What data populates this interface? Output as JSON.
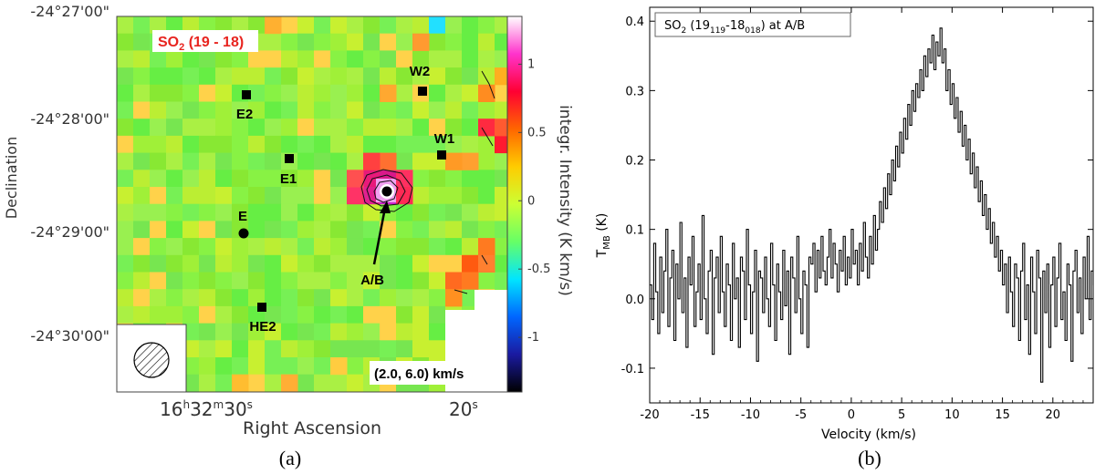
{
  "panels": {
    "a": {
      "caption": "(a)"
    },
    "b": {
      "caption": "(b)"
    }
  },
  "chart_data": [
    {
      "type": "heatmap",
      "id": "map",
      "map_label": "SO2 (19 - 18)",
      "map_label_parts": {
        "species": "SO",
        "sub": "2",
        "rest": " (19 - 18)"
      },
      "velocity_range_label": "(2.0, 6.0) km/s",
      "xlabel": "Right Ascension",
      "ylabel": "Declination",
      "colorbar_label": "integr. Intensity (K km/s)",
      "colorbar_ticks": [
        "-1",
        "-0.5",
        "0",
        "0.5",
        "1"
      ],
      "colorbar_ticks_values": [
        -1,
        -0.5,
        0,
        0.5,
        1
      ],
      "colorbar_range": [
        -1.4,
        1.35
      ],
      "colorbar_colors": [
        "#000000",
        "#1a1aa0",
        "#0066ff",
        "#00e5ff",
        "#66ff66",
        "#ccff33",
        "#ffcc00",
        "#ff6600",
        "#ff0033",
        "#ff33cc",
        "#ffffff"
      ],
      "dec_ticks": [
        "-24°27'00\"",
        "-24°28'00\"",
        "-24°29'00\"",
        "-24°30'00\""
      ],
      "ra_ticks": [
        "16h32m30s",
        "20s"
      ],
      "ra_tick_parts": {
        "h": "16",
        "m": "32",
        "s": "30",
        "s2": "20"
      },
      "sources": [
        {
          "name": "W2",
          "marker": "square"
        },
        {
          "name": "E2",
          "marker": "square"
        },
        {
          "name": "W1",
          "marker": "square"
        },
        {
          "name": "E1",
          "marker": "square"
        },
        {
          "name": "E",
          "marker": "circle"
        },
        {
          "name": "A/B",
          "marker": "circle"
        },
        {
          "name": "HE2",
          "marker": "square"
        }
      ]
    },
    {
      "type": "line",
      "id": "spectrum",
      "title": "SO2 (19119-18018) at A/B",
      "title_parts": {
        "a": "SO",
        "a_sub": "2",
        "b": " (19",
        "b_sub": "119",
        "c": "-18",
        "c_sub": "018",
        "d": ") at A/B"
      },
      "xlabel": "Velocity (km/s)",
      "ylabel": "TMB (K)",
      "ylabel_parts": {
        "main": "T",
        "sub": "MB",
        "unit": " (K)"
      },
      "xlim": [
        -20,
        24
      ],
      "ylim": [
        -0.15,
        0.42
      ],
      "xticks": [
        -20,
        -15,
        -10,
        -5,
        0,
        5,
        10,
        15,
        20
      ],
      "yticks": [
        -0.1,
        0.0,
        0.1,
        0.2,
        0.3,
        0.4
      ],
      "ytick_labels": [
        "-0.1",
        "0.0",
        "0.1",
        "0.2",
        "0.3",
        "0.4"
      ],
      "step": true,
      "velocity_start": -20,
      "velocity_step": 0.2,
      "values": [
        0.02,
        -0.03,
        0.08,
        0.01,
        -0.05,
        0.06,
        -0.02,
        0.04,
        0.1,
        -0.04,
        0.03,
        0.07,
        -0.06,
        0.05,
        0.0,
        0.11,
        -0.02,
        0.03,
        -0.07,
        0.06,
        0.02,
        0.09,
        -0.04,
        0.01,
        0.05,
        -0.03,
        0.12,
        0.0,
        -0.05,
        0.04,
        0.07,
        -0.08,
        0.03,
        0.06,
        -0.02,
        0.09,
        0.01,
        -0.04,
        0.05,
        0.02,
        -0.06,
        0.08,
        0.0,
        0.03,
        -0.07,
        0.06,
        0.04,
        -0.03,
        0.1,
        0.02,
        -0.05,
        0.01,
        0.07,
        -0.09,
        0.04,
        0.03,
        -0.02,
        0.06,
        0.0,
        -0.04,
        0.08,
        0.02,
        -0.06,
        0.05,
        0.01,
        -0.03,
        0.07,
        -0.01,
        0.04,
        -0.08,
        0.06,
        0.03,
        -0.02,
        0.09,
        0.0,
        -0.05,
        0.04,
        0.02,
        -0.07,
        0.06,
        0.05,
        0.08,
        0.01,
        0.07,
        0.03,
        0.09,
        0.04,
        0.02,
        0.06,
        0.1,
        0.03,
        0.08,
        0.05,
        0.01,
        0.07,
        0.04,
        0.09,
        0.02,
        0.06,
        0.03,
        0.1,
        0.05,
        0.07,
        0.02,
        0.08,
        0.04,
        0.11,
        0.06,
        0.03,
        0.09,
        0.05,
        0.12,
        0.07,
        0.1,
        0.14,
        0.11,
        0.16,
        0.13,
        0.18,
        0.15,
        0.2,
        0.17,
        0.22,
        0.19,
        0.24,
        0.21,
        0.26,
        0.23,
        0.28,
        0.25,
        0.3,
        0.27,
        0.31,
        0.29,
        0.33,
        0.3,
        0.35,
        0.32,
        0.36,
        0.34,
        0.38,
        0.33,
        0.37,
        0.35,
        0.39,
        0.34,
        0.36,
        0.3,
        0.33,
        0.28,
        0.31,
        0.26,
        0.29,
        0.24,
        0.27,
        0.22,
        0.25,
        0.2,
        0.23,
        0.18,
        0.21,
        0.16,
        0.19,
        0.14,
        0.17,
        0.12,
        0.15,
        0.1,
        0.13,
        0.08,
        0.11,
        0.06,
        0.09,
        0.04,
        0.07,
        0.02,
        0.05,
        -0.02,
        0.06,
        0.01,
        -0.04,
        0.05,
        0.03,
        -0.06,
        0.04,
        0.08,
        -0.03,
        0.02,
        -0.08,
        0.06,
        0.01,
        -0.05,
        0.07,
        0.03,
        -0.12,
        0.04,
        -0.02,
        0.05,
        -0.07,
        0.02,
        0.06,
        -0.04,
        0.03,
        0.08,
        -0.03,
        0.01,
        -0.06,
        0.05,
        0.02,
        -0.09,
        0.04,
        0.07,
        -0.02,
        0.03,
        -0.05,
        0.06,
        0.0,
        0.09,
        -0.03,
        0.04,
        0.02,
        -0.06,
        0.07,
        0.01,
        -0.04,
        0.05,
        0.03,
        -0.07,
        0.08,
        0.0,
        0.04,
        -0.02,
        0.06,
        0.02,
        -0.05,
        0.09,
        0.01,
        0.03,
        -0.04,
        0.07,
        0.02,
        -0.06,
        0.05,
        0.1,
        -0.01
      ]
    }
  ]
}
